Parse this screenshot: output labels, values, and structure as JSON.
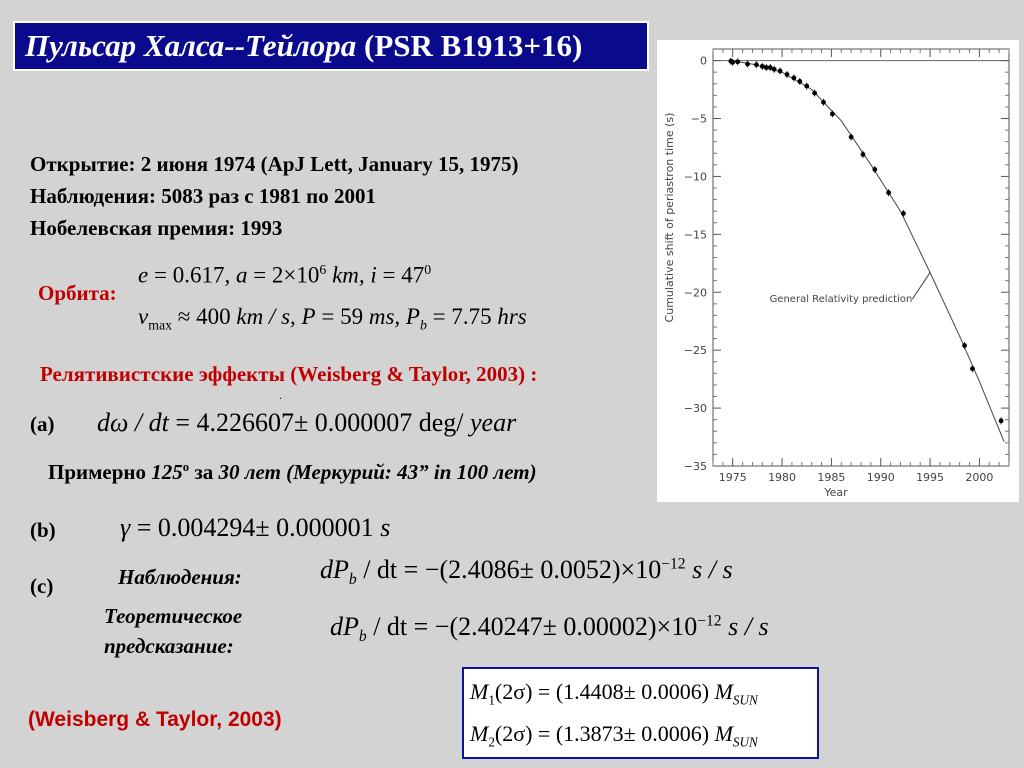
{
  "title": {
    "italic": "Пульсар Халса--Тейлора",
    "plain": " (PSR B1913+16)"
  },
  "info": [
    "Открытие:  2 июня 1974 (ApJ Lett, January 15, 1975)",
    "Наблюдения: 5083 раз с 1981 по 2001",
    "Нобелевская премия: 1993"
  ],
  "orbit": {
    "label": "Орбита:",
    "line1": {
      "e_sym": "e",
      "e_val": " = 0.617,   ",
      "a_sym": "a",
      "a_val": " = 2×10",
      "a_exp": "6",
      "a_unit": " km,   ",
      "i_sym": "i",
      "i_val": " = 47",
      "i_exp": "0"
    },
    "line2": {
      "v_sym": "v",
      "v_sub": "max",
      "v_val": " ≈ 400 ",
      "v_unit": "km / s,   ",
      "P_sym": "P",
      "P_val": " = 59 ",
      "P_unit": "ms,   ",
      "Pb_sym": "P",
      "Pb_sub": "b",
      "Pb_val": " = 7.75 ",
      "Pb_unit": "hrs"
    }
  },
  "rel_effects": "Релятивистские эффекты (Weisberg & Taylor, 2003) :",
  "dot": ".",
  "item_a": {
    "label": "(a)",
    "expr_sym": "dω / dt",
    "expr_val": " = 4.226607± 0.000007  deg/ ",
    "expr_unit": "year"
  },
  "approx": {
    "p1": "Примерно ",
    "p2": "125",
    "p2sup": "o",
    "p3": " за ",
    "p4": "30 лет (Меркурий: 43” in 100 лет)"
  },
  "item_b": {
    "label": "(b)",
    "sym": "γ",
    "val": " = 0.004294± 0.000001 ",
    "unit": "s"
  },
  "item_c": {
    "label": "(c)",
    "obs_label": "Наблюдения:",
    "obs": {
      "sym": "dP",
      "sub": "b",
      "mid": " / dt = −(2.4086± 0.0052)×10",
      "exp": "−12",
      "unit": "  s / s"
    },
    "theory_label1": "Теоретическое",
    "theory_label2": "предсказание:",
    "theory": {
      "sym": "dP",
      "sub": "b",
      "mid": " / dt = −(2.40247± 0.00002)×10",
      "exp": "−12",
      "unit": "  s / s"
    }
  },
  "reference": "(Weisberg & Taylor, 2003)",
  "masses": {
    "m1": {
      "sym": "M",
      "sub": "1",
      "val": "(2σ) = (1.4408± 0.0006)  ",
      "unit": "M",
      "unit_sub": "SUN"
    },
    "m2": {
      "sym": "M",
      "sub": "2",
      "val": "(2σ) = (1.3873± 0.0006)  ",
      "unit": "M",
      "unit_sub": "SUN"
    }
  },
  "chart_data": {
    "type": "scatter",
    "ylabel": "Cumulative shift of periastron time (s)",
    "xlabel": "Year",
    "xlim": [
      1973,
      2003
    ],
    "ylim": [
      -35,
      1
    ],
    "xticks": [
      1975,
      1980,
      1985,
      1990,
      1995,
      2000
    ],
    "yticks": [
      0,
      -5,
      -10,
      -15,
      -20,
      -25,
      -30,
      -35
    ],
    "ytick_labels": [
      "0",
      "−5",
      "−10",
      "−15",
      "−20",
      "−25",
      "−30",
      "−35"
    ],
    "annotation": "General Relativity prediction",
    "points": [
      {
        "x": 1974.8,
        "y": -0.05
      },
      {
        "x": 1975.0,
        "y": -0.15
      },
      {
        "x": 1975.5,
        "y": -0.1
      },
      {
        "x": 1976.5,
        "y": -0.3
      },
      {
        "x": 1977.4,
        "y": -0.35
      },
      {
        "x": 1978.0,
        "y": -0.5
      },
      {
        "x": 1978.4,
        "y": -0.6
      },
      {
        "x": 1978.8,
        "y": -0.6
      },
      {
        "x": 1979.2,
        "y": -0.75
      },
      {
        "x": 1979.8,
        "y": -0.9
      },
      {
        "x": 1980.5,
        "y": -1.2
      },
      {
        "x": 1981.2,
        "y": -1.5
      },
      {
        "x": 1981.8,
        "y": -1.8
      },
      {
        "x": 1982.5,
        "y": -2.2
      },
      {
        "x": 1983.3,
        "y": -2.8
      },
      {
        "x": 1984.2,
        "y": -3.6
      },
      {
        "x": 1985.1,
        "y": -4.6
      },
      {
        "x": 1987.0,
        "y": -6.6
      },
      {
        "x": 1988.2,
        "y": -8.1
      },
      {
        "x": 1989.4,
        "y": -9.4
      },
      {
        "x": 1990.8,
        "y": -11.4
      },
      {
        "x": 1992.3,
        "y": -13.2
      },
      {
        "x": 1998.5,
        "y": -24.6
      },
      {
        "x": 1999.3,
        "y": -26.6
      },
      {
        "x": 2002.2,
        "y": -31.1
      }
    ],
    "curve": [
      {
        "x": 1974.8,
        "y": 0
      },
      {
        "x": 1977,
        "y": -0.3
      },
      {
        "x": 1980,
        "y": -1.0
      },
      {
        "x": 1983,
        "y": -2.5
      },
      {
        "x": 1986,
        "y": -5.2
      },
      {
        "x": 1989,
        "y": -9.0
      },
      {
        "x": 1992,
        "y": -13.0
      },
      {
        "x": 1995,
        "y": -18.3
      },
      {
        "x": 1998,
        "y": -23.8
      },
      {
        "x": 2000,
        "y": -27.7
      },
      {
        "x": 2002.5,
        "y": -32.9
      }
    ]
  }
}
